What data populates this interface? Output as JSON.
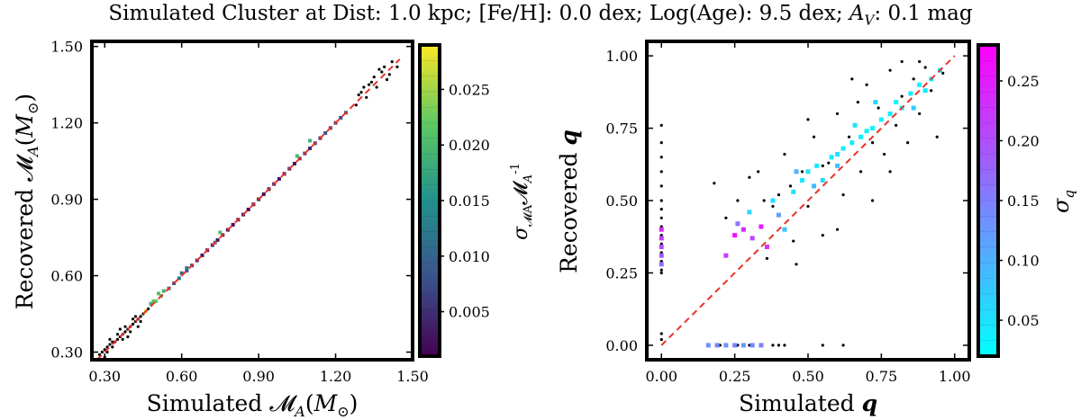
{
  "figure": {
    "suptitle": "Simulated Cluster at Dist: 1.0 kpc; [Fe/H]: 0.0 dex; Log(Age): 9.5 dex; A_V: 0.1 mag"
  },
  "chart_data": [
    {
      "type": "scatter",
      "xlabel": "Simulated 𝓜_A(M_⊙)",
      "ylabel": "Recovered 𝓜_A(M_⊙)",
      "xlim": [
        0.25,
        1.5
      ],
      "ylim": [
        0.27,
        1.52
      ],
      "xticks": [
        0.3,
        0.6,
        0.9,
        1.2,
        1.5
      ],
      "xtick_labels": [
        "0.30",
        "0.60",
        "0.90",
        "1.20",
        "1.50"
      ],
      "yticks": [
        0.3,
        0.6,
        0.9,
        1.2,
        1.5
      ],
      "ytick_labels": [
        "0.30",
        "0.60",
        "0.90",
        "1.20",
        "1.50"
      ],
      "reference_line": "one-to-one dashed red",
      "colorbar": {
        "label": "σ_𝓜A 𝓜_A^-1",
        "colormap": "viridis",
        "range": [
          0.001,
          0.029
        ],
        "ticks": [
          0.005,
          0.01,
          0.015,
          0.02,
          0.025
        ],
        "tick_labels": [
          "0.005",
          "0.010",
          "0.015",
          "0.020",
          "0.025"
        ]
      },
      "series": [
        {
          "marker": "black dots (no uncertainty colour)",
          "points": [
            [
              0.28,
              0.29
            ],
            [
              0.29,
              0.3
            ],
            [
              0.3,
              0.31
            ],
            [
              0.31,
              0.3
            ],
            [
              0.31,
              0.32
            ],
            [
              0.32,
              0.33
            ],
            [
              0.33,
              0.34
            ],
            [
              0.33,
              0.32
            ],
            [
              0.34,
              0.34
            ],
            [
              0.35,
              0.35
            ],
            [
              0.35,
              0.37
            ],
            [
              0.36,
              0.36
            ],
            [
              0.37,
              0.37
            ],
            [
              0.37,
              0.35
            ],
            [
              0.38,
              0.38
            ],
            [
              0.38,
              0.4
            ],
            [
              0.39,
              0.39
            ],
            [
              0.4,
              0.4
            ],
            [
              0.4,
              0.38
            ],
            [
              0.41,
              0.41
            ],
            [
              0.42,
              0.42
            ],
            [
              0.42,
              0.44
            ],
            [
              0.43,
              0.43
            ],
            [
              0.44,
              0.44
            ],
            [
              0.44,
              0.42
            ],
            [
              0.45,
              0.45
            ],
            [
              0.46,
              0.46
            ],
            [
              0.47,
              0.47
            ],
            [
              0.3,
              0.28
            ],
            [
              0.32,
              0.35
            ],
            [
              0.36,
              0.39
            ],
            [
              0.39,
              0.36
            ],
            [
              0.41,
              0.43
            ],
            [
              0.43,
              0.4
            ],
            [
              1.28,
              1.27
            ],
            [
              1.3,
              1.32
            ],
            [
              1.32,
              1.3
            ],
            [
              1.34,
              1.36
            ],
            [
              1.36,
              1.34
            ],
            [
              1.38,
              1.4
            ],
            [
              1.4,
              1.37
            ],
            [
              1.42,
              1.44
            ],
            [
              1.44,
              1.42
            ],
            [
              1.35,
              1.38
            ],
            [
              1.37,
              1.41
            ],
            [
              1.33,
              1.35
            ],
            [
              1.39,
              1.42
            ],
            [
              1.41,
              1.39
            ],
            [
              1.31,
              1.34
            ],
            [
              1.29,
              1.31
            ]
          ]
        },
        {
          "marker": "squares coloured by σ",
          "points": [
            [
              0.46,
              0.46,
              0.027
            ],
            [
              0.48,
              0.49,
              0.018
            ],
            [
              0.5,
              0.5,
              0.022
            ],
            [
              0.52,
              0.52,
              0.02
            ],
            [
              0.53,
              0.54,
              0.019
            ],
            [
              0.55,
              0.55,
              0.012
            ],
            [
              0.57,
              0.57,
              0.009
            ],
            [
              0.59,
              0.59,
              0.012
            ],
            [
              0.6,
              0.61,
              0.011
            ],
            [
              0.62,
              0.62,
              0.008
            ],
            [
              0.64,
              0.64,
              0.006
            ],
            [
              0.66,
              0.66,
              0.004
            ],
            [
              0.68,
              0.68,
              0.003
            ],
            [
              0.7,
              0.7,
              0.003
            ],
            [
              0.72,
              0.72,
              0.004
            ],
            [
              0.74,
              0.74,
              0.003
            ],
            [
              0.76,
              0.76,
              0.003
            ],
            [
              0.78,
              0.78,
              0.002
            ],
            [
              0.8,
              0.8,
              0.002
            ],
            [
              0.82,
              0.82,
              0.002
            ],
            [
              0.84,
              0.84,
              0.003
            ],
            [
              0.86,
              0.86,
              0.002
            ],
            [
              0.88,
              0.88,
              0.002
            ],
            [
              0.9,
              0.9,
              0.003
            ],
            [
              0.92,
              0.92,
              0.002
            ],
            [
              0.94,
              0.94,
              0.002
            ],
            [
              0.96,
              0.96,
              0.003
            ],
            [
              0.98,
              0.98,
              0.003
            ],
            [
              1.0,
              1.0,
              0.003
            ],
            [
              1.02,
              1.02,
              0.004
            ],
            [
              1.04,
              1.04,
              0.003
            ],
            [
              1.06,
              1.06,
              0.004
            ],
            [
              1.08,
              1.08,
              0.005
            ],
            [
              1.1,
              1.1,
              0.004
            ],
            [
              1.12,
              1.12,
              0.006
            ],
            [
              1.14,
              1.14,
              0.005
            ],
            [
              1.16,
              1.16,
              0.008
            ],
            [
              1.18,
              1.18,
              0.007
            ],
            [
              1.2,
              1.2,
              0.006
            ],
            [
              1.22,
              1.22,
              0.008
            ],
            [
              1.24,
              1.24,
              0.009
            ],
            [
              0.75,
              0.77,
              0.02
            ],
            [
              1.05,
              1.07,
              0.02
            ],
            [
              1.1,
              1.13,
              0.019
            ],
            [
              0.62,
              0.63,
              0.012
            ],
            [
              0.49,
              0.5,
              0.022
            ],
            [
              0.51,
              0.53,
              0.021
            ],
            [
              0.73,
              0.73,
              0.011
            ]
          ]
        }
      ]
    },
    {
      "type": "scatter",
      "xlabel": "Simulated q",
      "ylabel": "Recovered q",
      "xlim": [
        -0.05,
        1.05
      ],
      "ylim": [
        -0.05,
        1.05
      ],
      "xticks": [
        0,
        0.25,
        0.5,
        0.75,
        1.0
      ],
      "xtick_labels": [
        "0.00",
        "0.25",
        "0.50",
        "0.75",
        "1.00"
      ],
      "yticks": [
        0,
        0.25,
        0.5,
        0.75,
        1.0
      ],
      "ytick_labels": [
        "0.00",
        "0.25",
        "0.50",
        "0.75",
        "1.00"
      ],
      "reference_line": "one-to-one dashed red",
      "colorbar": {
        "label": "σ_q",
        "colormap": "cool",
        "range": [
          0.02,
          0.28
        ],
        "ticks": [
          0.05,
          0.1,
          0.15,
          0.2,
          0.25
        ],
        "tick_labels": [
          "0.05",
          "0.10",
          "0.15",
          "0.20",
          "0.25"
        ]
      },
      "series": [
        {
          "marker": "black dots (no uncertainty colour)",
          "points": [
            [
              0.0,
              0.76
            ],
            [
              0.0,
              0.7
            ],
            [
              0.0,
              0.65
            ],
            [
              0.0,
              0.6
            ],
            [
              0.0,
              0.55
            ],
            [
              0.0,
              0.5
            ],
            [
              0.0,
              0.47
            ],
            [
              0.0,
              0.44
            ],
            [
              0.0,
              0.41
            ],
            [
              0.0,
              0.38
            ],
            [
              0.0,
              0.35
            ],
            [
              0.0,
              0.32
            ],
            [
              0.0,
              0.29
            ],
            [
              0.0,
              0.26
            ],
            [
              0.0,
              0.25
            ],
            [
              0.0,
              0.02
            ],
            [
              0.0,
              0.04
            ],
            [
              0.2,
              0.0
            ],
            [
              0.26,
              0.0
            ],
            [
              0.3,
              0.0
            ],
            [
              0.38,
              0.0
            ],
            [
              0.4,
              0.0
            ],
            [
              0.42,
              0.0
            ],
            [
              0.55,
              0.0
            ],
            [
              0.62,
              0.0
            ],
            [
              0.18,
              0.56
            ],
            [
              0.22,
              0.44
            ],
            [
              0.26,
              0.5
            ],
            [
              0.3,
              0.58
            ],
            [
              0.33,
              0.6
            ],
            [
              0.36,
              0.3
            ],
            [
              0.4,
              0.52
            ],
            [
              0.42,
              0.66
            ],
            [
              0.45,
              0.36
            ],
            [
              0.48,
              0.6
            ],
            [
              0.5,
              0.48
            ],
            [
              0.52,
              0.72
            ],
            [
              0.55,
              0.38
            ],
            [
              0.57,
              0.63
            ],
            [
              0.6,
              0.8
            ],
            [
              0.62,
              0.52
            ],
            [
              0.64,
              0.72
            ],
            [
              0.67,
              0.84
            ],
            [
              0.68,
              0.6
            ],
            [
              0.7,
              0.9
            ],
            [
              0.72,
              0.7
            ],
            [
              0.74,
              0.82
            ],
            [
              0.76,
              0.66
            ],
            [
              0.78,
              0.95
            ],
            [
              0.8,
              0.76
            ],
            [
              0.82,
              0.86
            ],
            [
              0.84,
              0.7
            ],
            [
              0.86,
              0.92
            ],
            [
              0.88,
              0.8
            ],
            [
              0.9,
              0.96
            ],
            [
              0.92,
              0.88
            ],
            [
              0.94,
              0.72
            ],
            [
              0.96,
              0.94
            ],
            [
              0.55,
              0.62
            ],
            [
              0.46,
              0.28
            ],
            [
              0.38,
              0.48
            ],
            [
              0.5,
              0.78
            ],
            [
              0.65,
              0.92
            ],
            [
              0.78,
              0.6
            ],
            [
              0.88,
              0.98
            ],
            [
              0.6,
              0.4
            ],
            [
              0.35,
              0.5
            ],
            [
              0.72,
              0.5
            ],
            [
              0.44,
              0.55
            ],
            [
              0.82,
              0.98
            ]
          ]
        },
        {
          "marker": "squares coloured by σ",
          "points": [
            [
              0.0,
              0.4,
              0.24
            ],
            [
              0.0,
              0.37,
              0.22
            ],
            [
              0.0,
              0.34,
              0.2
            ],
            [
              0.0,
              0.31,
              0.19
            ],
            [
              0.0,
              0.28,
              0.17
            ],
            [
              0.16,
              0.0,
              0.13
            ],
            [
              0.19,
              0.0,
              0.14
            ],
            [
              0.22,
              0.0,
              0.13
            ],
            [
              0.25,
              0.0,
              0.15
            ],
            [
              0.28,
              0.0,
              0.12
            ],
            [
              0.31,
              0.0,
              0.14
            ],
            [
              0.34,
              0.0,
              0.15
            ],
            [
              0.22,
              0.31,
              0.22
            ],
            [
              0.25,
              0.38,
              0.27
            ],
            [
              0.28,
              0.4,
              0.24
            ],
            [
              0.31,
              0.37,
              0.21
            ],
            [
              0.34,
              0.41,
              0.25
            ],
            [
              0.36,
              0.34,
              0.23
            ],
            [
              0.26,
              0.42,
              0.16
            ],
            [
              0.3,
              0.46,
              0.06
            ],
            [
              0.38,
              0.5,
              0.05
            ],
            [
              0.4,
              0.45,
              0.12
            ],
            [
              0.45,
              0.53,
              0.05
            ],
            [
              0.48,
              0.57,
              0.04
            ],
            [
              0.5,
              0.6,
              0.05
            ],
            [
              0.53,
              0.62,
              0.04
            ],
            [
              0.55,
              0.57,
              0.06
            ],
            [
              0.58,
              0.65,
              0.04
            ],
            [
              0.6,
              0.66,
              0.05
            ],
            [
              0.62,
              0.68,
              0.04
            ],
            [
              0.65,
              0.7,
              0.04
            ],
            [
              0.68,
              0.72,
              0.03
            ],
            [
              0.7,
              0.74,
              0.04
            ],
            [
              0.72,
              0.75,
              0.03
            ],
            [
              0.75,
              0.78,
              0.03
            ],
            [
              0.78,
              0.8,
              0.04
            ],
            [
              0.8,
              0.84,
              0.03
            ],
            [
              0.82,
              0.82,
              0.03
            ],
            [
              0.85,
              0.87,
              0.04
            ],
            [
              0.88,
              0.9,
              0.03
            ],
            [
              0.9,
              0.88,
              0.04
            ],
            [
              0.92,
              0.92,
              0.03
            ],
            [
              0.95,
              0.95,
              0.04
            ],
            [
              0.52,
              0.55,
              0.09
            ],
            [
              0.46,
              0.6,
              0.1
            ],
            [
              0.6,
              0.62,
              0.08
            ],
            [
              0.73,
              0.84,
              0.06
            ],
            [
              0.86,
              0.82,
              0.07
            ],
            [
              0.66,
              0.76,
              0.05
            ],
            [
              0.42,
              0.4,
              0.08
            ]
          ]
        }
      ]
    }
  ]
}
